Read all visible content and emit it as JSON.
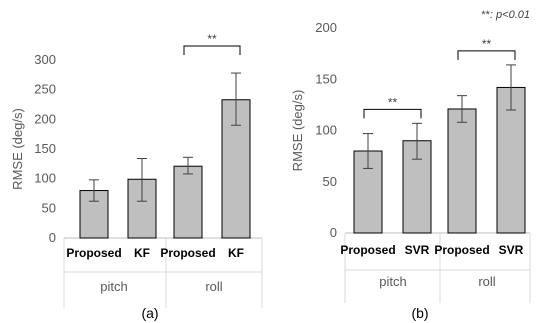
{
  "chart_data": [
    {
      "type": "bar",
      "panel_label": "(a)",
      "ylabel": "RMSE (deg/s)",
      "ylim": [
        0,
        300
      ],
      "yticks": [
        0,
        50,
        100,
        150,
        200,
        250,
        300
      ],
      "groups": [
        {
          "name": "pitch",
          "bars": [
            {
              "label": "Proposed",
              "value": 80,
              "error_low": 62,
              "error_high": 98
            },
            {
              "label": "KF",
              "value": 99,
              "error_low": 62,
              "error_high": 134
            }
          ]
        },
        {
          "name": "roll",
          "bars": [
            {
              "label": "Proposed",
              "value": 121,
              "error_low": 108,
              "error_high": 136
            },
            {
              "label": "KF",
              "value": 233,
              "error_low": 190,
              "error_high": 278
            }
          ]
        }
      ],
      "significance": [
        {
          "group": 1,
          "text": "**"
        }
      ]
    },
    {
      "type": "bar",
      "panel_label": "(b)",
      "ylabel": "RMSE (deg/s)",
      "ylim": [
        0,
        200
      ],
      "yticks": [
        0,
        50,
        100,
        150,
        200
      ],
      "note": {
        "stars": "**",
        "rest": ": p<0.01"
      },
      "groups": [
        {
          "name": "pitch",
          "bars": [
            {
              "label": "Proposed",
              "value": 80,
              "error_low": 63,
              "error_high": 97
            },
            {
              "label": "SVR",
              "value": 90,
              "error_low": 72,
              "error_high": 107
            }
          ]
        },
        {
          "name": "roll",
          "bars": [
            {
              "label": "Proposed",
              "value": 121,
              "error_low": 108,
              "error_high": 134
            },
            {
              "label": "SVR",
              "value": 142,
              "error_low": 120,
              "error_high": 164
            }
          ]
        }
      ],
      "significance": [
        {
          "group": 0,
          "text": "**"
        },
        {
          "group": 1,
          "text": "**"
        }
      ]
    }
  ]
}
